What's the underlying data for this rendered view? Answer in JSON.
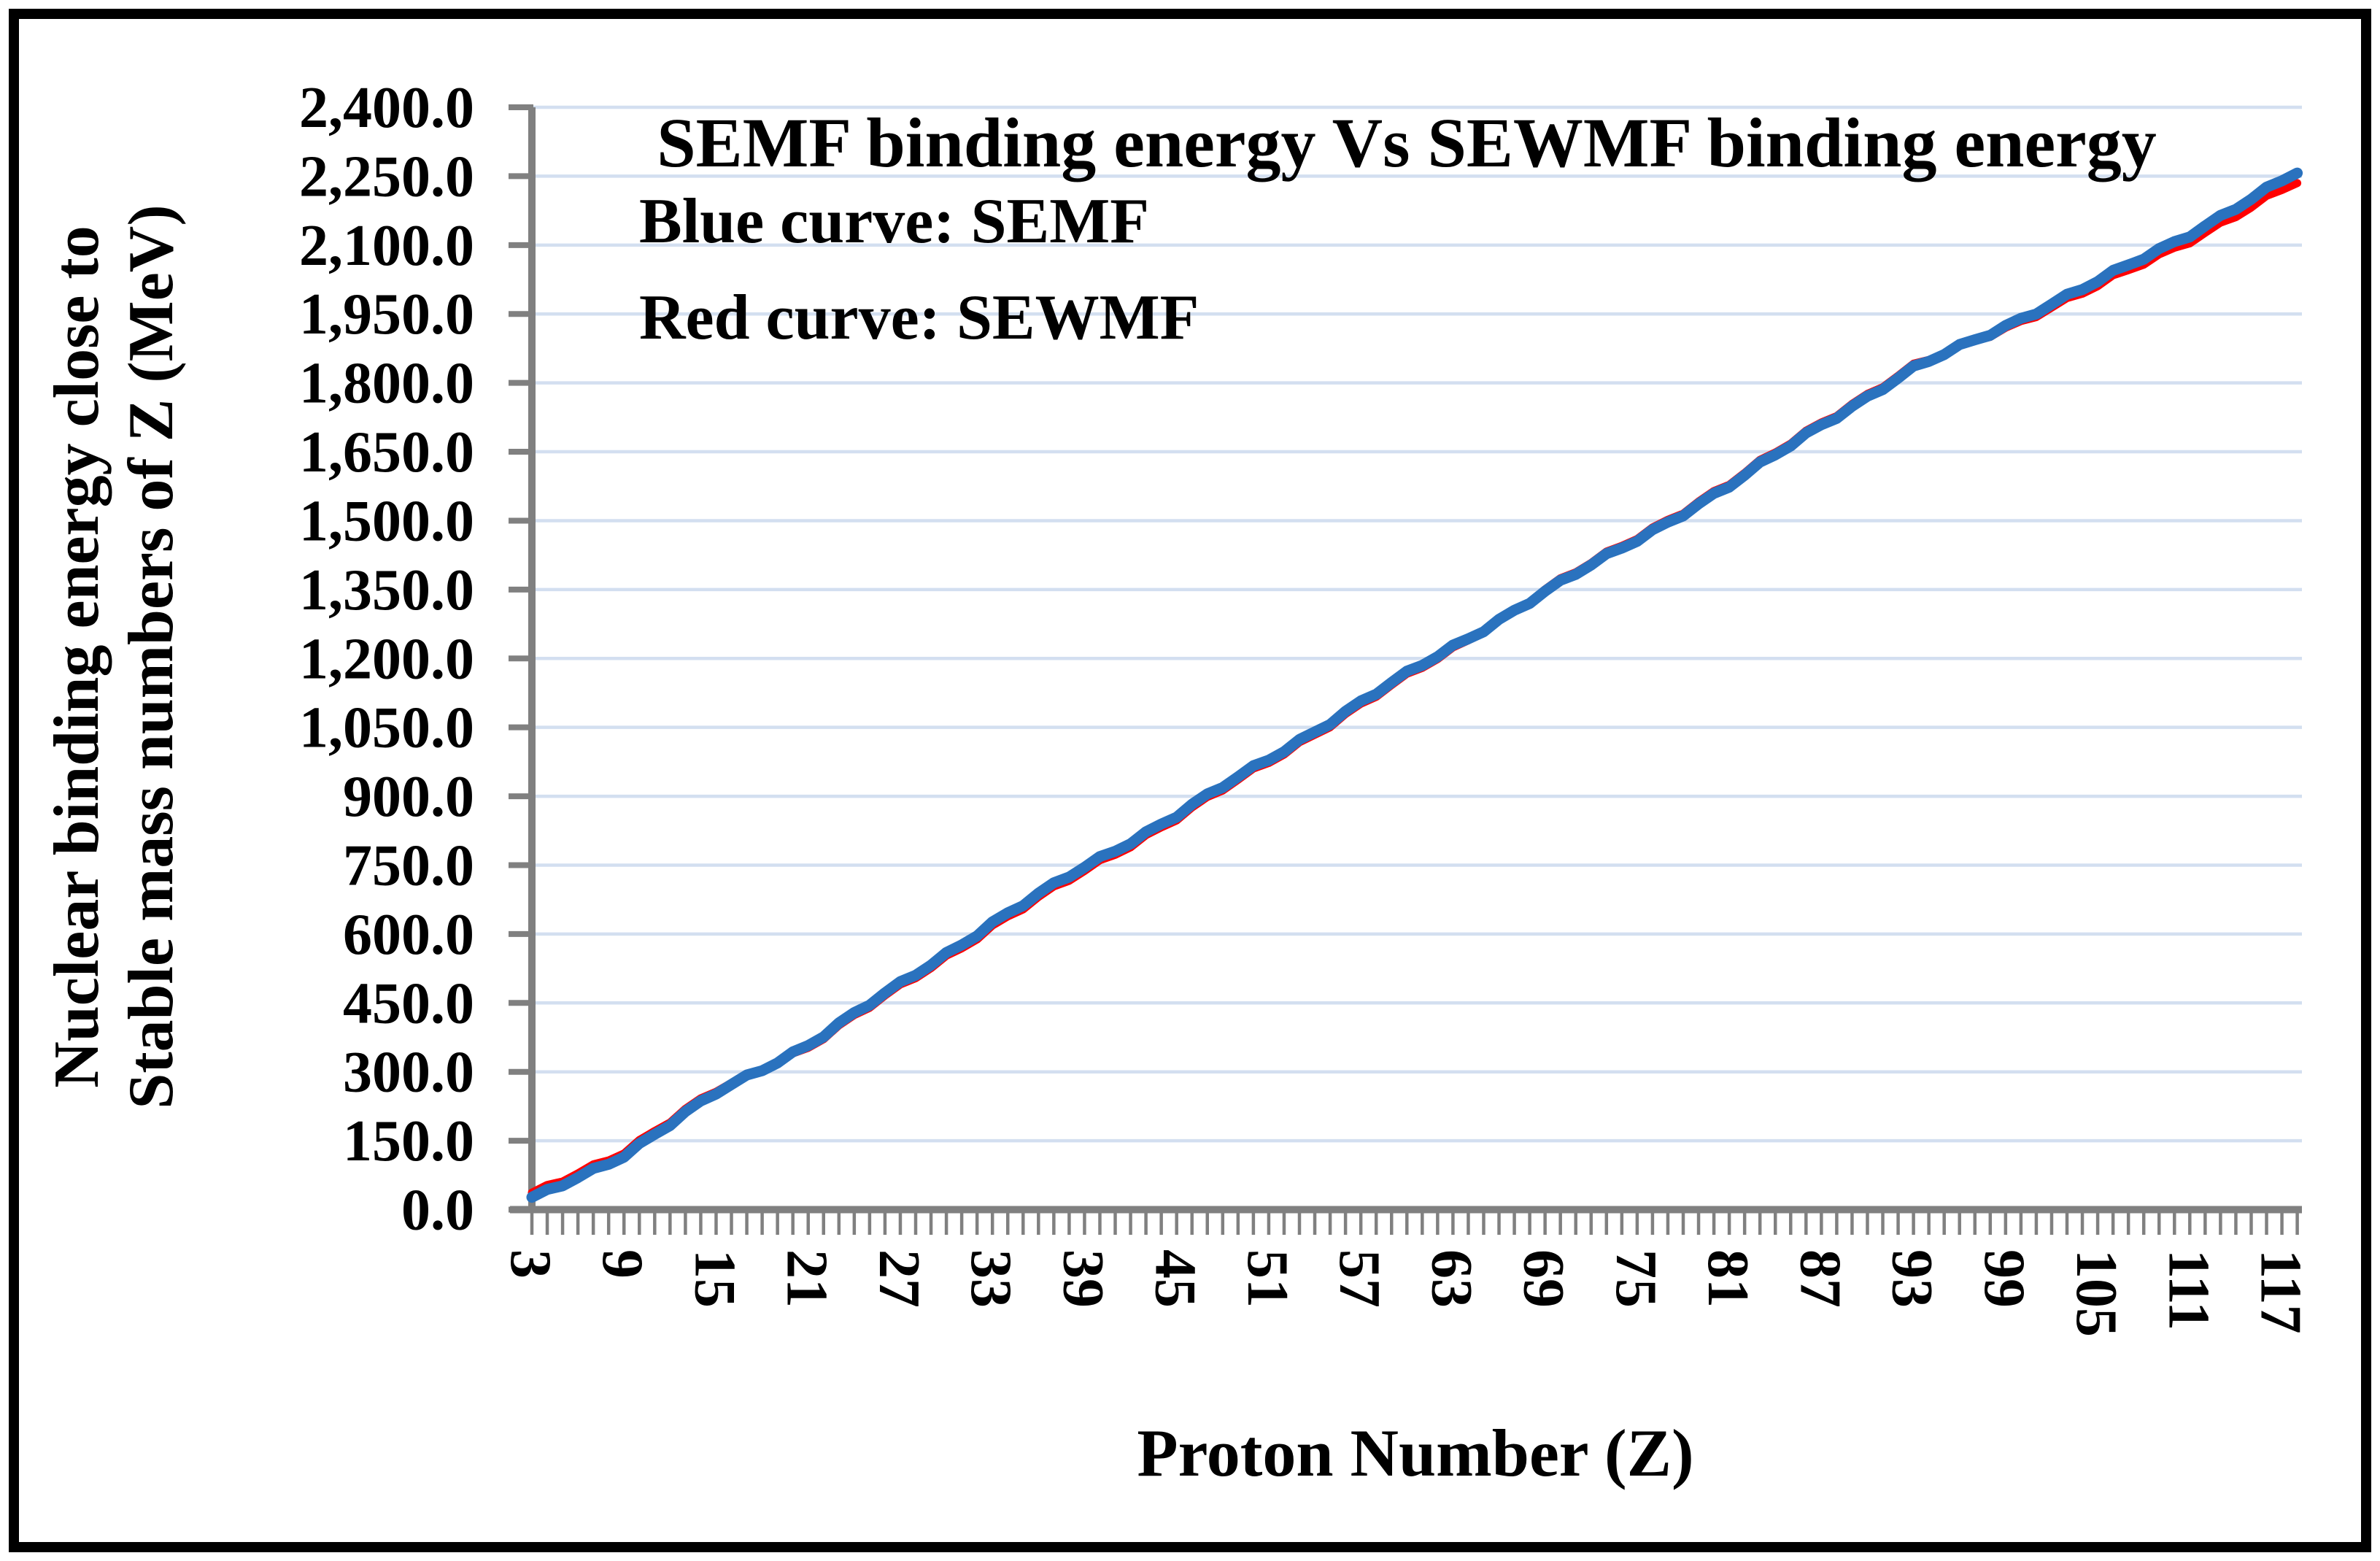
{
  "chart_data": {
    "type": "line",
    "title": "SEMF binding energy Vs SEWMF binding energy",
    "xlabel": "Proton Number (Z)",
    "ylabel_line1": "Nuclear binding energy close to",
    "ylabel_line2": "Stable mass numbers of Z (MeV)",
    "legend_position": "top-left inside plot, as colored text lines",
    "legend": [
      {
        "label": "Blue curve: SEMF",
        "color": "#1757F0"
      },
      {
        "label": "Red curve: SEWMF",
        "color": "#FF0000"
      }
    ],
    "grid": true,
    "x_tick_labels": [
      "3",
      "9",
      "15",
      "21",
      "27",
      "33",
      "39",
      "45",
      "51",
      "57",
      "63",
      "69",
      "75",
      "81",
      "87",
      "93",
      "99",
      "105",
      "111",
      "117"
    ],
    "y_tick_labels": [
      "0.0",
      "150.0",
      "300.0",
      "450.0",
      "600.0",
      "750.0",
      "900.0",
      "1,050.0",
      "1,200.0",
      "1,350.0",
      "1,500.0",
      "1,650.0",
      "1,800.0",
      "1,950.0",
      "2,100.0",
      "2,250.0",
      "2,400.0"
    ],
    "xlim": [
      3,
      118
    ],
    "ylim": [
      0,
      2400
    ],
    "y_tick_step": 150,
    "x": [
      3,
      9,
      15,
      21,
      27,
      33,
      39,
      45,
      51,
      57,
      63,
      69,
      75,
      81,
      87,
      93,
      99,
      105,
      111,
      117,
      118
    ],
    "series": [
      {
        "name": "SEMF",
        "color": "#2A72BE",
        "values": [
          22,
          120,
          253,
          360,
          490,
          625,
          745,
          860,
          980,
          1105,
          1225,
          1345,
          1460,
          1575,
          1710,
          1830,
          1925,
          2020,
          2125,
          2238,
          2258
        ]
      },
      {
        "name": "SEWMF",
        "color": "#FF0000",
        "values": [
          32,
          128,
          258,
          355,
          484,
          617,
          737,
          853,
          974,
          1099,
          1220,
          1349,
          1465,
          1580,
          1715,
          1835,
          1920,
          2010,
          2111,
          2218,
          2236
        ]
      }
    ]
  },
  "colors": {
    "axis": "#808080",
    "gridline": "#D3DFF0",
    "border": "#000000",
    "background": "#FFFFFF"
  }
}
